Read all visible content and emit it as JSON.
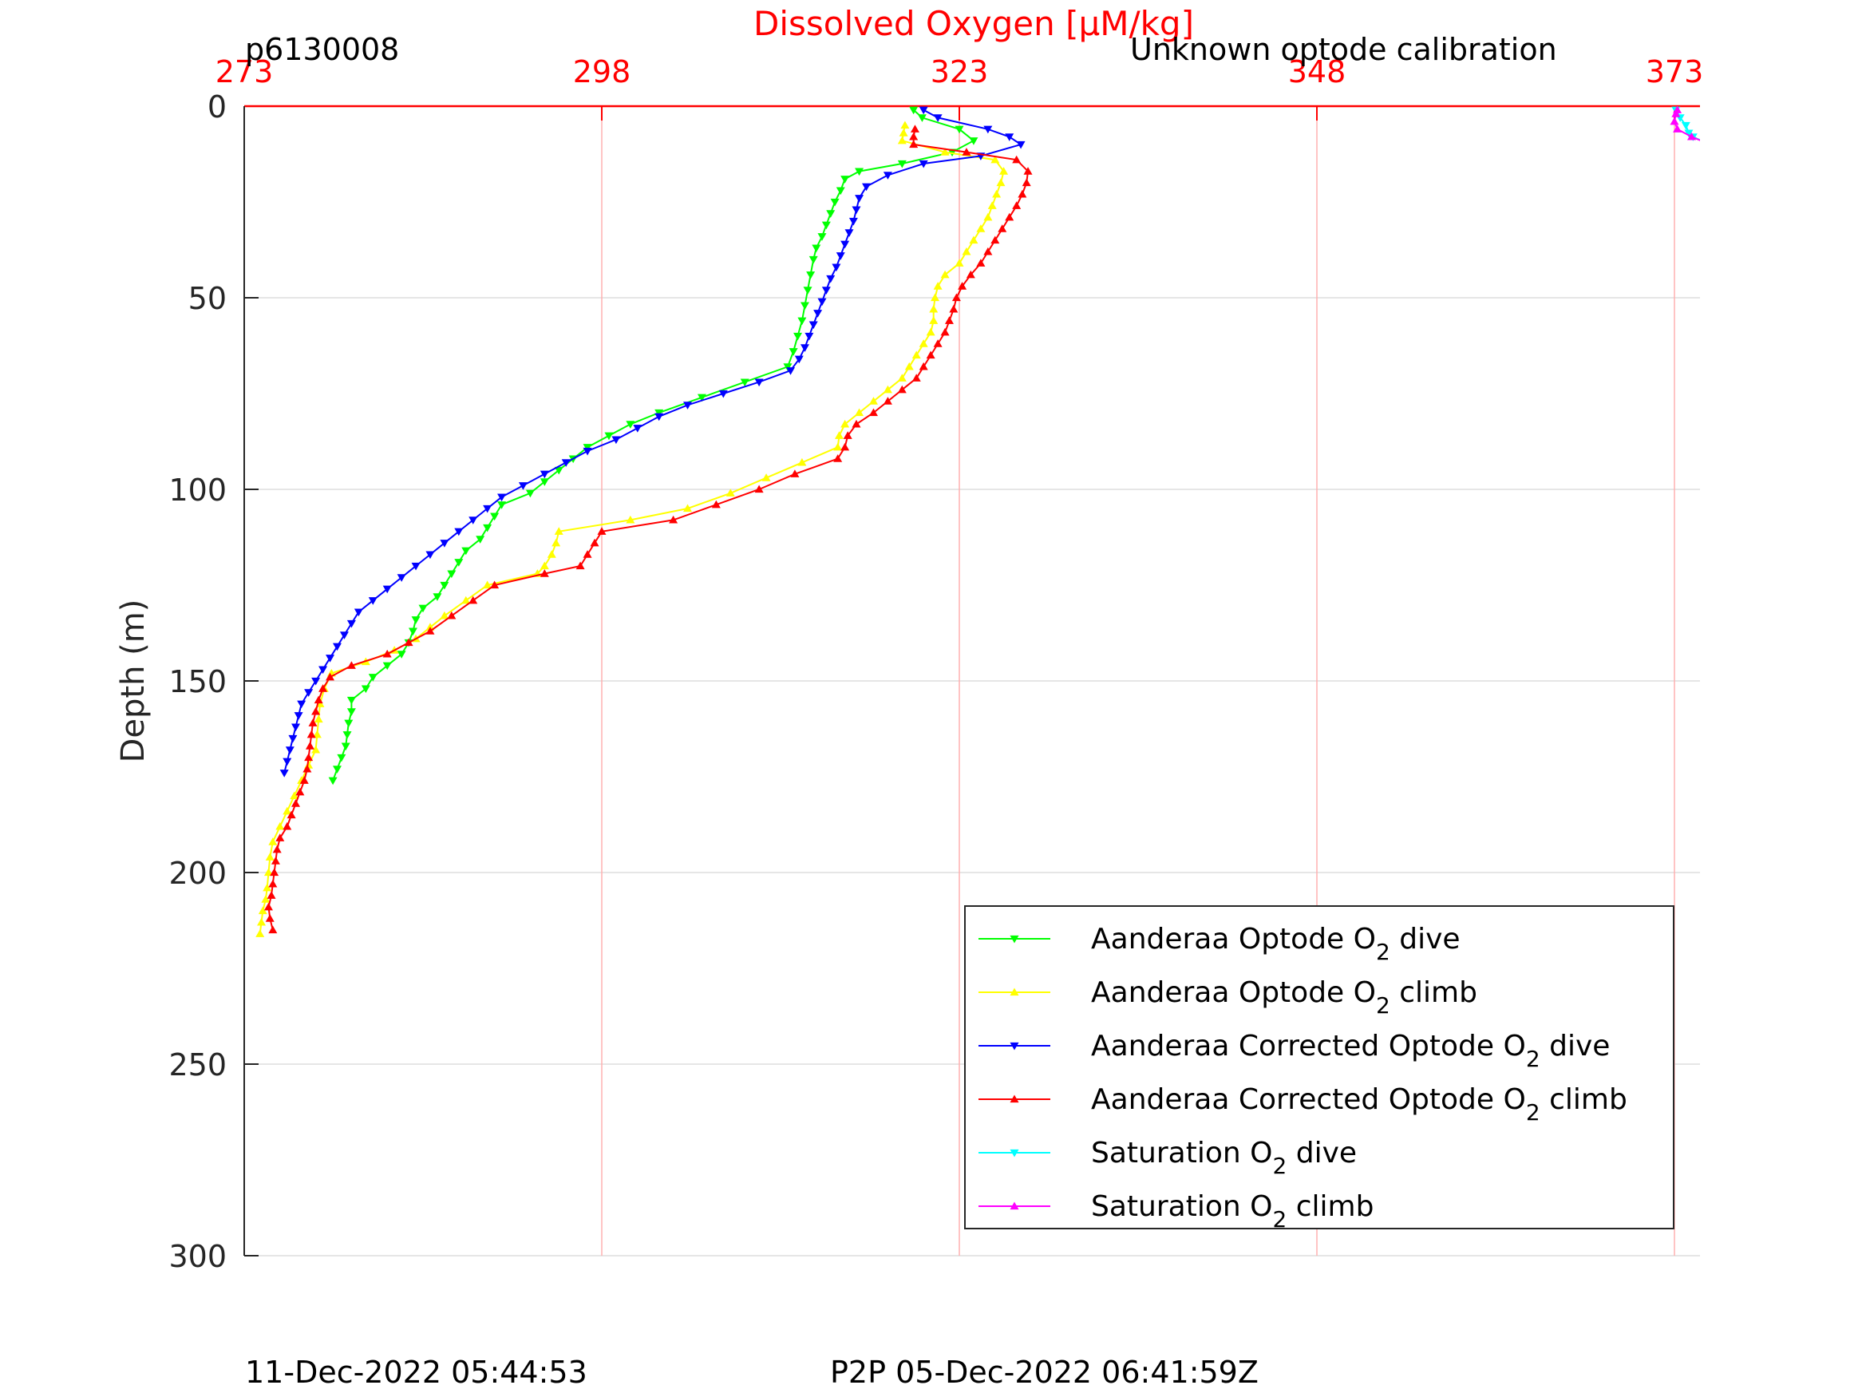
{
  "header": {
    "profile_id": "p6130008",
    "calibration_note": "Unknown optode calibration"
  },
  "footer": {
    "left_timestamp": "11-Dec-2022 05:44:53",
    "right_timestamp": "P2P 05-Dec-2022 06:41:59Z"
  },
  "chart_data": {
    "type": "line",
    "title": "Dissolved Oxygen [μM/kg]",
    "xlabel": "Dissolved Oxygen [μM/kg]",
    "ylabel": "Depth (m)",
    "x_axis_position": "top",
    "y_reversed": true,
    "xlim": [
      273,
      375
    ],
    "ylim": [
      0,
      300
    ],
    "xticks": [
      273,
      298,
      323,
      348,
      373
    ],
    "yticks": [
      0,
      50,
      100,
      150,
      200,
      250,
      300
    ],
    "grid": true,
    "colors": {
      "axis_x": "#ff0000",
      "vgrid": "#ffb0b0",
      "hgrid": "#dddddd"
    },
    "legend": {
      "position": "lower-right",
      "entries": [
        {
          "pre": "Aanderaa Optode O",
          "sub": "2",
          "post": " dive",
          "color": "#00ff00",
          "marker": "down"
        },
        {
          "pre": "Aanderaa Optode O",
          "sub": "2",
          "post": " climb",
          "color": "#ffff00",
          "marker": "up"
        },
        {
          "pre": "Aanderaa Corrected Optode O",
          "sub": "2",
          "post": " dive",
          "color": "#0000ff",
          "marker": "down"
        },
        {
          "pre": "Aanderaa Corrected Optode O",
          "sub": "2",
          "post": " climb",
          "color": "#ff0000",
          "marker": "up"
        },
        {
          "pre": "Saturation O",
          "sub": "2",
          "post": " dive",
          "color": "#00ffff",
          "marker": "down"
        },
        {
          "pre": "Saturation O",
          "sub": "2",
          "post": " climb",
          "color": "#ff00ff",
          "marker": "up"
        }
      ]
    },
    "series": [
      {
        "name": "Aanderaa Optode O2 dive",
        "color": "#00ff00",
        "marker": "down",
        "points": [
          [
            319.8,
            1
          ],
          [
            320.4,
            3
          ],
          [
            323,
            6
          ],
          [
            324,
            9
          ],
          [
            322.5,
            12
          ],
          [
            319,
            15
          ],
          [
            316,
            17
          ],
          [
            315,
            19
          ],
          [
            314.7,
            22
          ],
          [
            314.3,
            25
          ],
          [
            314,
            28
          ],
          [
            313.7,
            31
          ],
          [
            313.4,
            34
          ],
          [
            313,
            37
          ],
          [
            312.8,
            40
          ],
          [
            312.6,
            44
          ],
          [
            312.4,
            48
          ],
          [
            312.2,
            52
          ],
          [
            312,
            56
          ],
          [
            311.7,
            60
          ],
          [
            311.4,
            64
          ],
          [
            311,
            68
          ],
          [
            308,
            72
          ],
          [
            305,
            76
          ],
          [
            302,
            80
          ],
          [
            300,
            83
          ],
          [
            298.5,
            86
          ],
          [
            297,
            89
          ],
          [
            296,
            92
          ],
          [
            295,
            95
          ],
          [
            294,
            98
          ],
          [
            293,
            101
          ],
          [
            291,
            104
          ],
          [
            290.5,
            107
          ],
          [
            290,
            110
          ],
          [
            289.5,
            113
          ],
          [
            288.5,
            116
          ],
          [
            288,
            119
          ],
          [
            287.5,
            122
          ],
          [
            287,
            125
          ],
          [
            286.5,
            128
          ],
          [
            285.5,
            131
          ],
          [
            285,
            134
          ],
          [
            284.8,
            137
          ],
          [
            284.5,
            140
          ],
          [
            284,
            143
          ],
          [
            283,
            146
          ],
          [
            282,
            149
          ],
          [
            281.5,
            152
          ],
          [
            280.5,
            155
          ],
          [
            280.5,
            158
          ],
          [
            280.3,
            161
          ],
          [
            280.2,
            164
          ],
          [
            280.1,
            167
          ],
          [
            279.8,
            170
          ],
          [
            279.5,
            173
          ],
          [
            279.2,
            176
          ]
        ]
      },
      {
        "name": "Aanderaa Optode O2 climb",
        "color": "#ffff00",
        "marker": "up",
        "points": [
          [
            274.1,
            216
          ],
          [
            274.2,
            213
          ],
          [
            274.3,
            210
          ],
          [
            274.5,
            207
          ],
          [
            274.6,
            204
          ],
          [
            274.7,
            200
          ],
          [
            274.8,
            196
          ],
          [
            275,
            192
          ],
          [
            275.5,
            188
          ],
          [
            276,
            184
          ],
          [
            276.5,
            180
          ],
          [
            277,
            176
          ],
          [
            277.5,
            172
          ],
          [
            278,
            168
          ],
          [
            278.1,
            164
          ],
          [
            278.2,
            160
          ],
          [
            278.3,
            156
          ],
          [
            278.6,
            152
          ],
          [
            279.1,
            148
          ],
          [
            281.5,
            145
          ],
          [
            283.5,
            142
          ],
          [
            285,
            139
          ],
          [
            286,
            136
          ],
          [
            287,
            133
          ],
          [
            288.5,
            129
          ],
          [
            290,
            125
          ],
          [
            293.5,
            122
          ],
          [
            294,
            120
          ],
          [
            294.5,
            117
          ],
          [
            294.8,
            114
          ],
          [
            295,
            111
          ],
          [
            300,
            108
          ],
          [
            304,
            105
          ],
          [
            307,
            101
          ],
          [
            309.5,
            97
          ],
          [
            312,
            93
          ],
          [
            314.5,
            89
          ],
          [
            314.6,
            86
          ],
          [
            315,
            83
          ],
          [
            316,
            80
          ],
          [
            317,
            77
          ],
          [
            318,
            74
          ],
          [
            319,
            71
          ],
          [
            319.5,
            68
          ],
          [
            320,
            65
          ],
          [
            320.5,
            62
          ],
          [
            321,
            59
          ],
          [
            321.2,
            56
          ],
          [
            321.2,
            53
          ],
          [
            321.3,
            50
          ],
          [
            321.5,
            47
          ],
          [
            322,
            44
          ],
          [
            323,
            41
          ],
          [
            323.5,
            38
          ],
          [
            324,
            35
          ],
          [
            324.5,
            32
          ],
          [
            325,
            29
          ],
          [
            325.3,
            26
          ],
          [
            325.6,
            23
          ],
          [
            325.9,
            20
          ],
          [
            326.1,
            17
          ],
          [
            325.5,
            14
          ],
          [
            322,
            12
          ],
          [
            319,
            9
          ],
          [
            319.1,
            7
          ],
          [
            319.2,
            5
          ]
        ]
      },
      {
        "name": "Aanderaa Corrected Optode O2 dive",
        "color": "#0000ff",
        "marker": "down",
        "points": [
          [
            320.5,
            1
          ],
          [
            321.5,
            3
          ],
          [
            325,
            6
          ],
          [
            326.5,
            8
          ],
          [
            327.3,
            10
          ],
          [
            324.5,
            13
          ],
          [
            320.5,
            15
          ],
          [
            318,
            18
          ],
          [
            316.5,
            21
          ],
          [
            316,
            24
          ],
          [
            315.8,
            27
          ],
          [
            315.6,
            30
          ],
          [
            315.3,
            33
          ],
          [
            315,
            36
          ],
          [
            314.7,
            39
          ],
          [
            314.4,
            42
          ],
          [
            314,
            45
          ],
          [
            313.7,
            48
          ],
          [
            313.4,
            51
          ],
          [
            313.1,
            54
          ],
          [
            312.8,
            57
          ],
          [
            312.5,
            60
          ],
          [
            312.2,
            63
          ],
          [
            311.8,
            66
          ],
          [
            311.2,
            69
          ],
          [
            309,
            72
          ],
          [
            306.5,
            75
          ],
          [
            304,
            78
          ],
          [
            302,
            81
          ],
          [
            300.5,
            84
          ],
          [
            299,
            87
          ],
          [
            297,
            90
          ],
          [
            295.5,
            93
          ],
          [
            294,
            96
          ],
          [
            292.5,
            99
          ],
          [
            291,
            102
          ],
          [
            290,
            105
          ],
          [
            289,
            108
          ],
          [
            288,
            111
          ],
          [
            287,
            114
          ],
          [
            286,
            117
          ],
          [
            285,
            120
          ],
          [
            284,
            123
          ],
          [
            283,
            126
          ],
          [
            282,
            129
          ],
          [
            281,
            132
          ],
          [
            280.5,
            135
          ],
          [
            280,
            138
          ],
          [
            279.5,
            141
          ],
          [
            279,
            144
          ],
          [
            278.5,
            147
          ],
          [
            278,
            150
          ],
          [
            277.5,
            153
          ],
          [
            277,
            156
          ],
          [
            276.8,
            159
          ],
          [
            276.6,
            162
          ],
          [
            276.4,
            165
          ],
          [
            276.2,
            168
          ],
          [
            276,
            171
          ],
          [
            275.8,
            174
          ]
        ]
      },
      {
        "name": "Aanderaa Corrected Optode O2 climb",
        "color": "#ff0000",
        "marker": "up",
        "points": [
          [
            275,
            215
          ],
          [
            274.8,
            212
          ],
          [
            274.7,
            209
          ],
          [
            274.9,
            206
          ],
          [
            275,
            203
          ],
          [
            275.1,
            200
          ],
          [
            275.2,
            197
          ],
          [
            275.3,
            194
          ],
          [
            275.5,
            191
          ],
          [
            276,
            188
          ],
          [
            276.3,
            185
          ],
          [
            276.6,
            182
          ],
          [
            276.9,
            179
          ],
          [
            277.2,
            176
          ],
          [
            277.4,
            173
          ],
          [
            277.5,
            170
          ],
          [
            277.6,
            167
          ],
          [
            277.7,
            164
          ],
          [
            277.8,
            161
          ],
          [
            278,
            158
          ],
          [
            278.2,
            155
          ],
          [
            278.5,
            152
          ],
          [
            279,
            149
          ],
          [
            280.5,
            146
          ],
          [
            283,
            143
          ],
          [
            284.5,
            140
          ],
          [
            286,
            137
          ],
          [
            287.5,
            133
          ],
          [
            289,
            129
          ],
          [
            290.5,
            125
          ],
          [
            294,
            122
          ],
          [
            296.5,
            120
          ],
          [
            297,
            117
          ],
          [
            297.5,
            114
          ],
          [
            298,
            111
          ],
          [
            303,
            108
          ],
          [
            306,
            104
          ],
          [
            309,
            100
          ],
          [
            311.5,
            96
          ],
          [
            314.5,
            92
          ],
          [
            315,
            89
          ],
          [
            315.2,
            86
          ],
          [
            315.8,
            83
          ],
          [
            317,
            80
          ],
          [
            318,
            77
          ],
          [
            319,
            74
          ],
          [
            320,
            71
          ],
          [
            320.5,
            68
          ],
          [
            321,
            65
          ],
          [
            321.5,
            62
          ],
          [
            322,
            59
          ],
          [
            322.3,
            56
          ],
          [
            322.6,
            53
          ],
          [
            322.8,
            50
          ],
          [
            323.2,
            47
          ],
          [
            323.8,
            44
          ],
          [
            324.5,
            41
          ],
          [
            325,
            38
          ],
          [
            325.5,
            35
          ],
          [
            326,
            32
          ],
          [
            326.5,
            29
          ],
          [
            327,
            26
          ],
          [
            327.4,
            23
          ],
          [
            327.7,
            20
          ],
          [
            327.8,
            17
          ],
          [
            327,
            14
          ],
          [
            323.5,
            12
          ],
          [
            319.8,
            10
          ],
          [
            319.8,
            8
          ],
          [
            319.9,
            6
          ]
        ]
      },
      {
        "name": "Saturation O2 dive",
        "color": "#00ffff",
        "marker": "down",
        "points": [
          [
            373.1,
            1
          ],
          [
            373.4,
            3
          ],
          [
            373.8,
            5
          ],
          [
            374,
            7
          ],
          [
            374.3,
            8
          ],
          [
            375.5,
            10
          ]
        ]
      },
      {
        "name": "Saturation O2 climb",
        "color": "#ff00ff",
        "marker": "up",
        "points": [
          [
            375.5,
            10
          ],
          [
            374.2,
            8
          ],
          [
            373.2,
            6
          ],
          [
            373,
            4
          ],
          [
            373.1,
            2
          ],
          [
            373.2,
            1
          ]
        ]
      }
    ]
  }
}
